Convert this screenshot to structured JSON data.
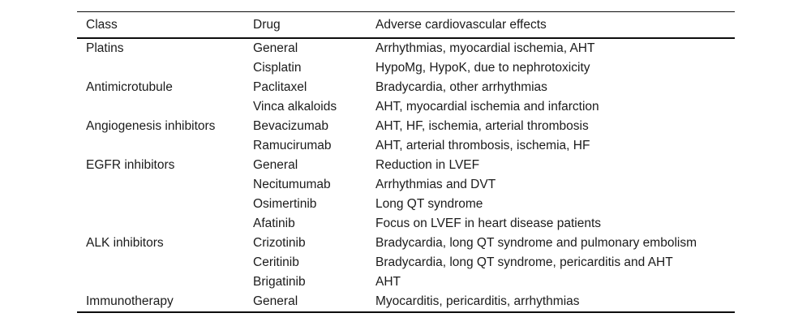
{
  "table": {
    "columns": [
      "Class",
      "Drug",
      "Adverse cardiovascular effects"
    ],
    "rows": [
      {
        "class": "Platins",
        "drug": "General",
        "effects": "Arrhythmias, myocardial ischemia, AHT"
      },
      {
        "class": "",
        "drug": "Cisplatin",
        "effects": "HypoMg, HypoK, due to nephrotoxicity"
      },
      {
        "class": "Antimicrotubule",
        "drug": "Paclitaxel",
        "effects": "Bradycardia, other arrhythmias"
      },
      {
        "class": "",
        "drug": "Vinca alkaloids",
        "effects": "AHT, myocardial ischemia and infarction"
      },
      {
        "class": "Angiogenesis inhibitors",
        "drug": "Bevacizumab",
        "effects": "AHT, HF, ischemia, arterial thrombosis"
      },
      {
        "class": "",
        "drug": "Ramucirumab",
        "effects": "AHT, arterial thrombosis, ischemia, HF"
      },
      {
        "class": "EGFR inhibitors",
        "drug": "General",
        "effects": "Reduction in LVEF"
      },
      {
        "class": "",
        "drug": "Necitumumab",
        "effects": "Arrhythmias and DVT"
      },
      {
        "class": "",
        "drug": "Osimertinib",
        "effects": "Long QT syndrome"
      },
      {
        "class": "",
        "drug": "Afatinib",
        "effects": "Focus on LVEF in heart disease patients"
      },
      {
        "class": "ALK inhibitors",
        "drug": "Crizotinib",
        "effects": "Bradycardia, long QT syndrome and pulmonary embolism"
      },
      {
        "class": "",
        "drug": "Ceritinib",
        "effects": "Bradycardia, long QT syndrome, pericarditis and AHT"
      },
      {
        "class": "",
        "drug": "Brigatinib",
        "effects": "AHT"
      },
      {
        "class": "Immunotherapy",
        "drug": "General",
        "effects": "Myocarditis, pericarditis, arrhythmias"
      }
    ],
    "colors": {
      "text": "#1b1b1b",
      "rule": "#0d0d0d",
      "background": "#ffffff"
    }
  }
}
